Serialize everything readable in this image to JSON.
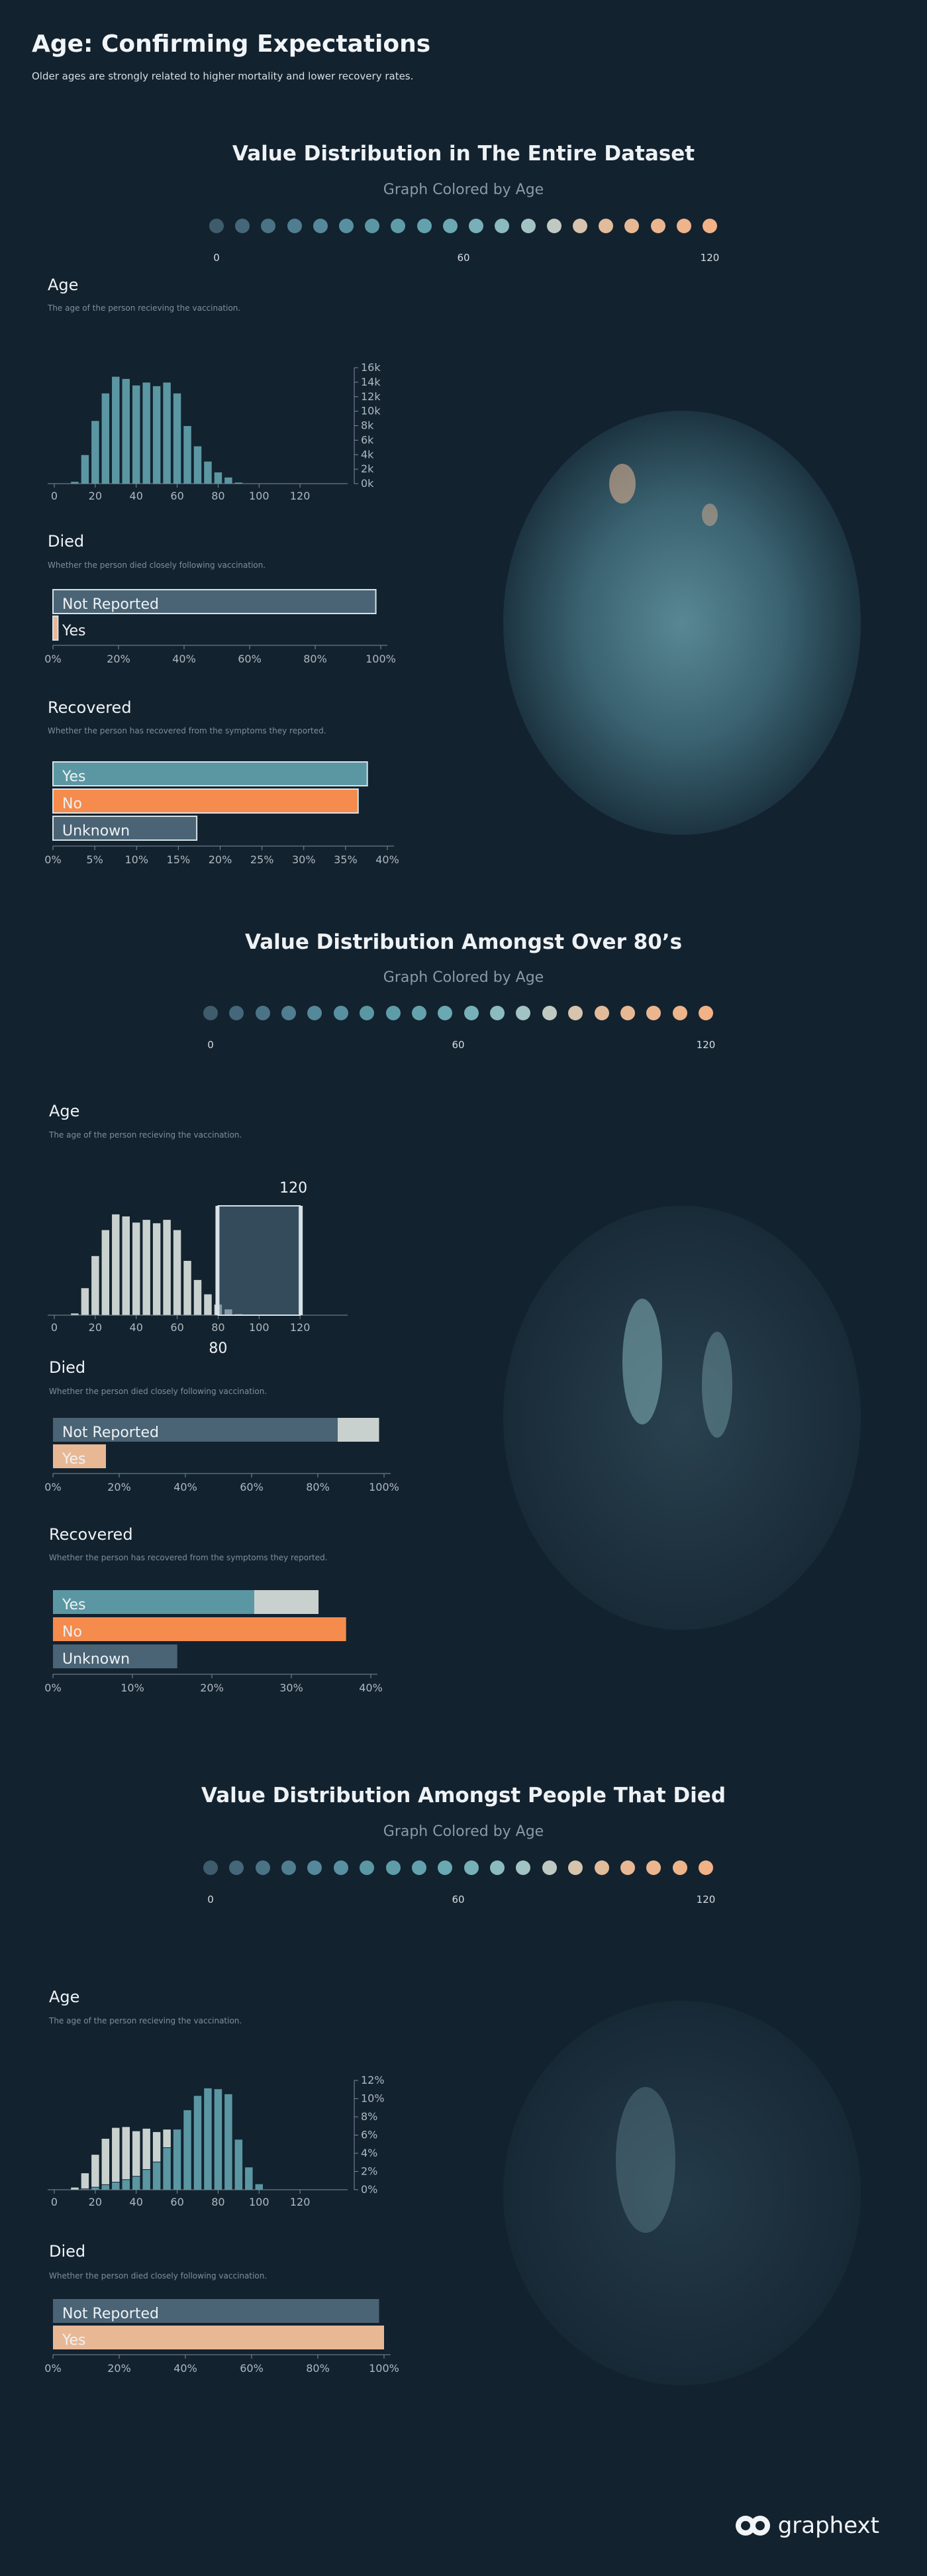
{
  "header": {
    "title": "Age: Confirming Expectations",
    "subtitle": "Older ages are strongly related to higher mortality and lower recovery rates."
  },
  "colors": {
    "background": "#13222f",
    "teal": "#5b97a3",
    "teal_light": "#8ebfc6",
    "orange": "#f58b4c",
    "peach": "#e8b895",
    "gray_bar": "#c9d1cf",
    "slate": "#4a6475"
  },
  "sections": [
    {
      "title": "Value Distribution in The Entire Dataset",
      "subtitle": "Graph Colored by Age",
      "scale": {
        "min": "0",
        "mid": "60",
        "max": "120"
      },
      "age": {
        "name": "Age",
        "desc": "The age of the person recieving the vaccination."
      },
      "died": {
        "name": "Died",
        "desc": "Whether the person died closely following vaccination.",
        "labels": [
          "Not Reported",
          "Yes"
        ]
      },
      "recovered": {
        "name": "Recovered",
        "desc": "Whether the person has recovered from the symptoms they reported.",
        "labels": [
          "Yes",
          "No",
          "Unknown"
        ]
      }
    },
    {
      "title": "Value Distribution Amongst Over 80’s",
      "subtitle": "Graph Colored by Age",
      "scale": {
        "min": "0",
        "mid": "60",
        "max": "120"
      },
      "age": {
        "name": "Age",
        "desc": "The age of the person recieving the vaccination.",
        "range_low": "80",
        "range_high": "120"
      },
      "died": {
        "name": "Died",
        "desc": "Whether the person died closely following vaccination.",
        "labels": [
          "Not Reported",
          "Yes"
        ]
      },
      "recovered": {
        "name": "Recovered",
        "desc": "Whether the person has recovered from the symptoms they reported.",
        "labels": [
          "Yes",
          "No",
          "Unknown"
        ]
      }
    },
    {
      "title": "Value Distribution Amongst People That Died",
      "subtitle": "Graph Colored by Age",
      "scale": {
        "min": "0",
        "mid": "60",
        "max": "120"
      },
      "age": {
        "name": "Age",
        "desc": "The age of the person recieving the vaccination."
      },
      "died": {
        "name": "Died",
        "desc": "Whether the person died closely following vaccination.",
        "labels": [
          "Not Reported",
          "Yes"
        ]
      }
    }
  ],
  "chart_data": [
    {
      "type": "bar",
      "x_ticks": [
        "0",
        "20",
        "40",
        "60",
        "80",
        "100",
        "120"
      ],
      "y_ticks": [
        "16k",
        "14k",
        "12k",
        "10k",
        "8k",
        "6k",
        "4k",
        "2k",
        "0k"
      ],
      "bins": [
        10,
        15,
        20,
        25,
        30,
        35,
        40,
        45,
        50,
        55,
        60,
        65,
        70,
        75,
        80,
        85,
        90,
        95
      ],
      "values": [
        300,
        4000,
        8700,
        12500,
        14800,
        14500,
        13600,
        14000,
        13500,
        14000,
        12500,
        8000,
        5200,
        3100,
        1600,
        900,
        200,
        50
      ],
      "ylim": [
        0,
        16000
      ]
    },
    {
      "type": "bar",
      "orientation": "horizontal",
      "x_ticks": [
        "0%",
        "20%",
        "40%",
        "60%",
        "80%",
        "100%"
      ],
      "categories": [
        "Not Reported",
        "Yes"
      ],
      "values": [
        98.5,
        1.5
      ],
      "xlim": [
        0,
        100
      ]
    },
    {
      "type": "bar",
      "orientation": "horizontal",
      "x_ticks": [
        "0%",
        "5%",
        "10%",
        "15%",
        "20%",
        "25%",
        "30%",
        "35%",
        "40%"
      ],
      "categories": [
        "Yes",
        "No",
        "Unknown"
      ],
      "values": [
        37.6,
        36.5,
        17.2
      ],
      "xlim": [
        0,
        40
      ]
    },
    {
      "type": "bar",
      "x_ticks": [
        "0",
        "20",
        "40",
        "60",
        "80",
        "100",
        "120"
      ],
      "bins": [
        10,
        15,
        20,
        25,
        30,
        35,
        40,
        45,
        50,
        55,
        60,
        65,
        70,
        75,
        80,
        85,
        90,
        95,
        100
      ],
      "values": [
        300,
        4000,
        8700,
        12500,
        14800,
        14500,
        13600,
        14000,
        13500,
        14000,
        12500,
        8000,
        5200,
        3100,
        1600,
        900,
        200,
        50,
        0
      ],
      "ylim": [
        0,
        16000
      ]
    },
    {
      "type": "bar",
      "orientation": "horizontal",
      "x_ticks": [
        "0%",
        "20%",
        "40%",
        "60%",
        "80%",
        "100%"
      ],
      "categories": [
        "Not Reported",
        "Yes"
      ],
      "series": [
        {
          "values": [
            98.5,
            1.5
          ]
        },
        {
          "values": [
            86,
            16
          ]
        }
      ],
      "xlim": [
        0,
        100
      ]
    },
    {
      "type": "bar",
      "orientation": "horizontal",
      "x_ticks": [
        "0%",
        "10%",
        "20%",
        "30%",
        "40%"
      ],
      "categories": [
        "Yes",
        "No",
        "Unknown"
      ],
      "series": [
        {
          "values": [
            37.6,
            36.5,
            17.2
          ]
        },
        {
          "values": [
            28.5,
            41.5,
            17.6
          ]
        }
      ],
      "xlim": [
        0,
        45
      ]
    },
    {
      "type": "bar",
      "x_ticks": [
        "0",
        "20",
        "40",
        "60",
        "80",
        "100",
        "120"
      ],
      "y_ticks": [
        "12%",
        "10%",
        "8%",
        "6%",
        "4%",
        "2%",
        "0%"
      ],
      "bins": [
        10,
        15,
        20,
        25,
        30,
        35,
        40,
        45,
        50,
        55,
        60,
        65,
        70,
        75,
        80,
        85,
        90,
        95,
        100
      ],
      "series": [
        {
          "values": [
            0.3,
            2.0,
            4.2,
            6.1,
            7.4,
            7.5,
            7.0,
            7.3,
            6.9,
            7.2,
            6.4,
            4.0,
            2.6,
            1.6,
            0.8,
            0.4,
            0.1,
            0.0,
            0.0
          ]
        },
        {
          "values": [
            0.0,
            0.1,
            0.3,
            0.6,
            0.9,
            1.2,
            1.6,
            2.4,
            3.3,
            5.0,
            7.2,
            9.5,
            11.2,
            12.1,
            12.0,
            11.4,
            6.0,
            2.7,
            0.7
          ]
        }
      ],
      "ylim": [
        0,
        13
      ]
    },
    {
      "type": "bar",
      "orientation": "horizontal",
      "x_ticks": [
        "0%",
        "20%",
        "40%",
        "60%",
        "80%",
        "100%"
      ],
      "categories": [
        "Not Reported",
        "Yes"
      ],
      "series": [
        {
          "values": [
            98.5,
            1.5
          ]
        },
        {
          "values": [
            0,
            100
          ]
        }
      ],
      "xlim": [
        0,
        100
      ]
    }
  ],
  "logo": {
    "text": "graphext"
  }
}
